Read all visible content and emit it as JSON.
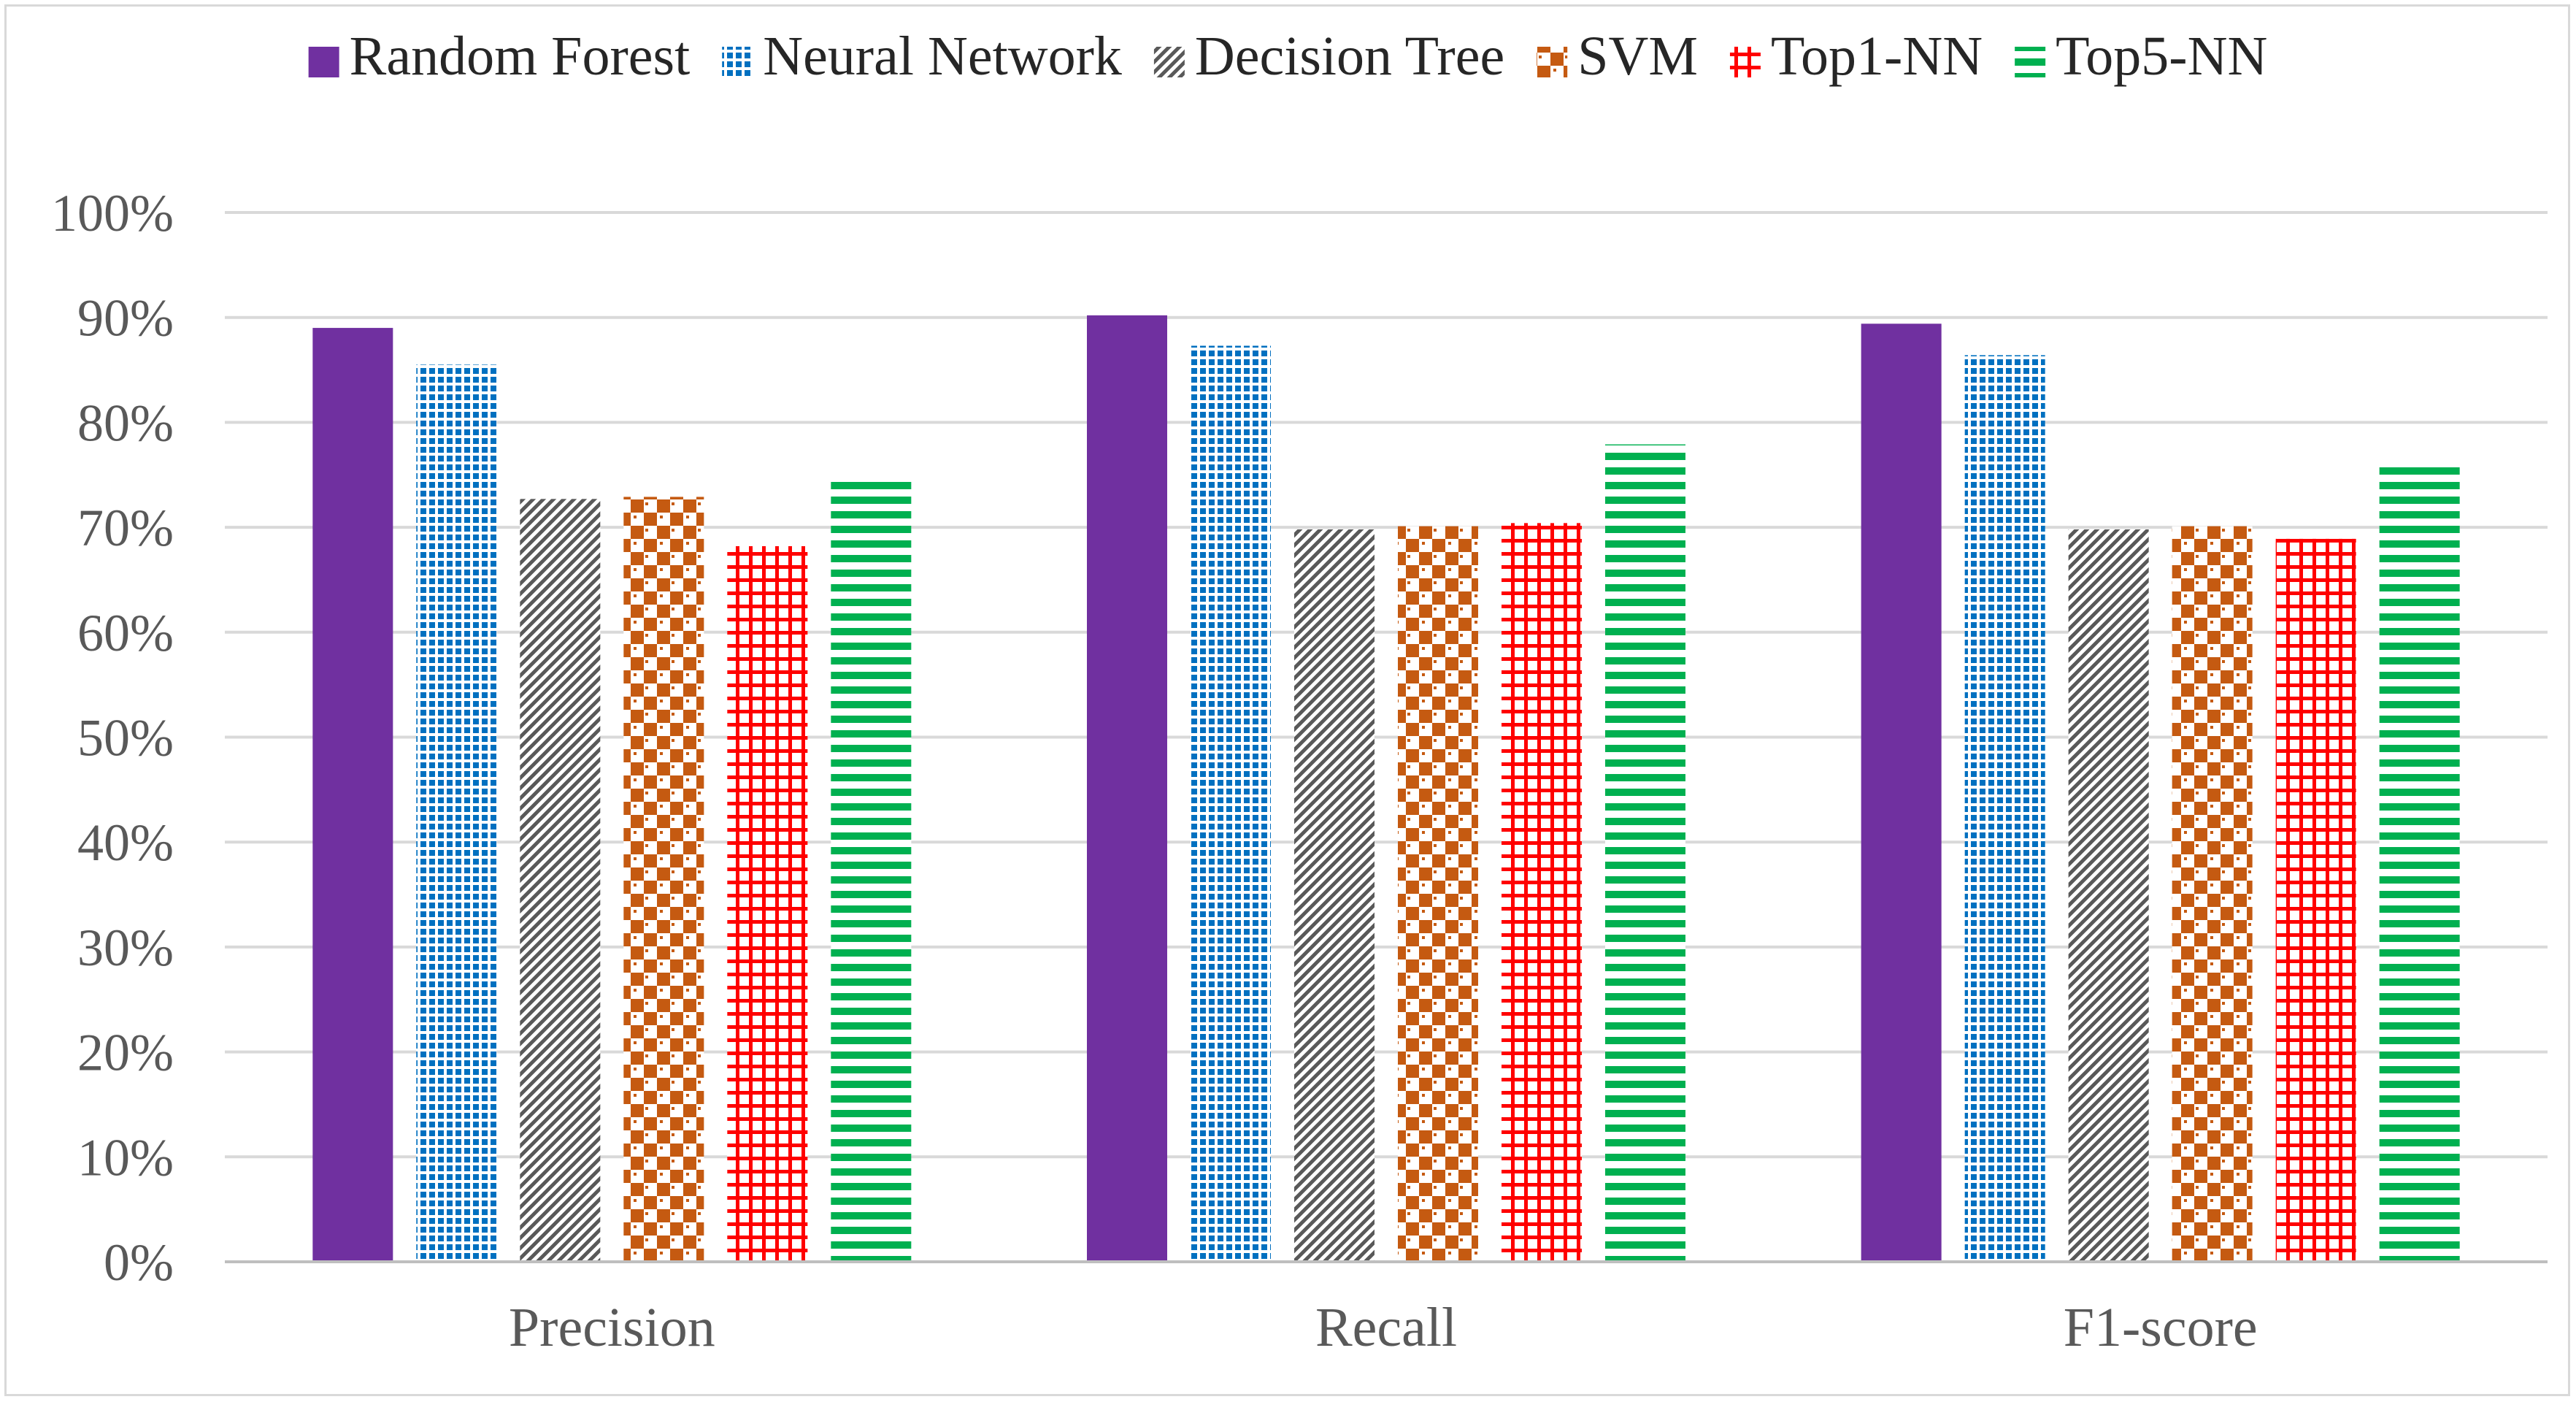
{
  "chart_data": {
    "type": "bar",
    "title": "",
    "xlabel": "",
    "ylabel": "",
    "ylim": [
      0,
      100
    ],
    "yticks": [
      0,
      10,
      20,
      30,
      40,
      50,
      60,
      70,
      80,
      90,
      100
    ],
    "ytick_labels": [
      "0%",
      "10%",
      "20%",
      "30%",
      "40%",
      "50%",
      "60%",
      "70%",
      "80%",
      "90%",
      "100%"
    ],
    "grid": true,
    "legend_position": "top",
    "categories": [
      "Precision",
      "Recall",
      "F1-score"
    ],
    "series": [
      {
        "name": "Random Forest",
        "values": [
          89,
          90.2,
          89.4
        ],
        "color": "#7030a0",
        "pattern": "solid"
      },
      {
        "name": "Neural Network",
        "values": [
          85.5,
          87.3,
          86.4
        ],
        "color": "#0070c0",
        "pattern": "dots"
      },
      {
        "name": "Decision Tree",
        "values": [
          72.7,
          69.8,
          69.8
        ],
        "color": "#595959",
        "pattern": "diagonal"
      },
      {
        "name": "SVM",
        "values": [
          72.9,
          70.1,
          70.1
        ],
        "color": "#c55a11",
        "pattern": "checker"
      },
      {
        "name": "Top1-NN",
        "values": [
          68.2,
          70.4,
          68.9
        ],
        "color": "#ff0000",
        "pattern": "grid"
      },
      {
        "name": "Top5-NN",
        "values": [
          75,
          77.9,
          76.3
        ],
        "color": "#00b050",
        "pattern": "horizontal"
      }
    ]
  }
}
